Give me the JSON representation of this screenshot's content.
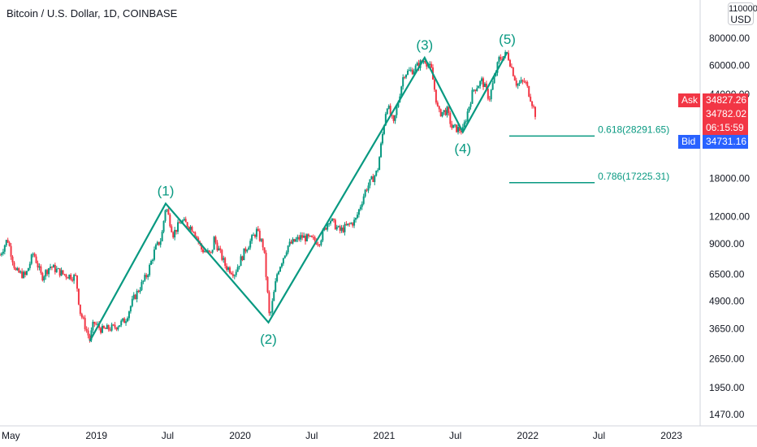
{
  "header": {
    "title": "Bitcoin / U.S. Dollar, 1D, COINBASE"
  },
  "currency_button": {
    "top": "110000.00",
    "label": "USD"
  },
  "price_badges": {
    "ask_label": "Ask",
    "ask_price": "34827.26",
    "last_price": "34782.02",
    "countdown": "06:15:59",
    "bid_label": "Bid",
    "bid_price": "34731.16"
  },
  "colors": {
    "up": "#089981",
    "down": "#f23645",
    "wave_line": "#089981",
    "ask_badge": "#f23645",
    "bid_badge": "#2962ff"
  },
  "chart_data": {
    "type": "candlestick",
    "title": "Bitcoin / U.S. Dollar, 1D, COINBASE",
    "y_scale": "log",
    "ylim": [
      1300,
      120000
    ],
    "xlim": [
      "2018-05-01",
      "2023-03-15"
    ],
    "y_ticks": [
      {
        "value": 80000,
        "label": "80000.00"
      },
      {
        "value": 60000,
        "label": "60000.00"
      },
      {
        "value": 44000,
        "label": "44000.00"
      },
      {
        "value": 18000,
        "label": "18000.00"
      },
      {
        "value": 12000,
        "label": "12000.00"
      },
      {
        "value": 9000,
        "label": "9000.00"
      },
      {
        "value": 6500,
        "label": "6500.00"
      },
      {
        "value": 4900,
        "label": "4900.00"
      },
      {
        "value": 3650,
        "label": "3650.00"
      },
      {
        "value": 2650,
        "label": "2650.00"
      },
      {
        "value": 1950,
        "label": "1950.00"
      },
      {
        "value": 1470,
        "label": "1470.00"
      }
    ],
    "x_ticks": [
      {
        "date": "2018-05-01",
        "label": "May"
      },
      {
        "date": "2019-01-01",
        "label": "2019"
      },
      {
        "date": "2019-07-01",
        "label": "Jul"
      },
      {
        "date": "2020-01-01",
        "label": "2020"
      },
      {
        "date": "2020-07-01",
        "label": "Jul"
      },
      {
        "date": "2021-01-01",
        "label": "2021"
      },
      {
        "date": "2021-07-01",
        "label": "Jul"
      },
      {
        "date": "2022-01-01",
        "label": "2022"
      },
      {
        "date": "2022-07-01",
        "label": "Jul"
      },
      {
        "date": "2023-01-01",
        "label": "2023"
      }
    ],
    "price_path": [
      [
        "2018-05-01",
        8000
      ],
      [
        "2018-05-20",
        9500
      ],
      [
        "2018-06-10",
        6700
      ],
      [
        "2018-07-05",
        6400
      ],
      [
        "2018-07-25",
        8200
      ],
      [
        "2018-08-15",
        6300
      ],
      [
        "2018-09-05",
        7100
      ],
      [
        "2018-10-10",
        6500
      ],
      [
        "2018-11-10",
        6300
      ],
      [
        "2018-11-20",
        4400
      ],
      [
        "2018-11-30",
        3900
      ],
      [
        "2018-12-15",
        3250
      ],
      [
        "2018-12-25",
        3900
      ],
      [
        "2019-01-15",
        3600
      ],
      [
        "2019-02-15",
        3700
      ],
      [
        "2019-03-15",
        4000
      ],
      [
        "2019-04-05",
        5000
      ],
      [
        "2019-05-10",
        6500
      ],
      [
        "2019-05-30",
        8500
      ],
      [
        "2019-06-15",
        9500
      ],
      [
        "2019-06-26",
        13500
      ],
      [
        "2019-07-15",
        10000
      ],
      [
        "2019-08-05",
        11500
      ],
      [
        "2019-09-05",
        10500
      ],
      [
        "2019-09-25",
        8500
      ],
      [
        "2019-10-20",
        8000
      ],
      [
        "2019-10-27",
        9500
      ],
      [
        "2019-11-25",
        7100
      ],
      [
        "2019-12-18",
        6600
      ],
      [
        "2020-01-15",
        8500
      ],
      [
        "2020-02-12",
        10300
      ],
      [
        "2020-03-01",
        8700
      ],
      [
        "2020-03-12",
        5000
      ],
      [
        "2020-03-16",
        4000
      ],
      [
        "2020-04-05",
        6700
      ],
      [
        "2020-05-01",
        8800
      ],
      [
        "2020-06-05",
        9700
      ],
      [
        "2020-07-20",
        9200
      ],
      [
        "2020-08-15",
        11800
      ],
      [
        "2020-09-10",
        10300
      ],
      [
        "2020-10-20",
        11500
      ],
      [
        "2020-11-15",
        16000
      ],
      [
        "2020-12-15",
        19500
      ],
      [
        "2021-01-08",
        40000
      ],
      [
        "2021-01-25",
        32000
      ],
      [
        "2021-02-20",
        55000
      ],
      [
        "2021-03-15",
        57000
      ],
      [
        "2021-04-14",
        64000
      ],
      [
        "2021-05-01",
        57000
      ],
      [
        "2021-05-19",
        36000
      ],
      [
        "2021-06-10",
        37000
      ],
      [
        "2021-06-22",
        31000
      ],
      [
        "2021-07-20",
        30000
      ],
      [
        "2021-08-15",
        46000
      ],
      [
        "2021-09-07",
        51000
      ],
      [
        "2021-09-25",
        42000
      ],
      [
        "2021-10-20",
        64000
      ],
      [
        "2021-11-10",
        68000
      ],
      [
        "2021-12-04",
        49000
      ],
      [
        "2021-12-25",
        50500
      ],
      [
        "2022-01-10",
        41500
      ],
      [
        "2022-01-22",
        34782
      ]
    ],
    "waves": [
      {
        "label": "(1)",
        "date": "2019-06-26",
        "price": 13800,
        "position": "above"
      },
      {
        "label": "(2)",
        "date": "2020-03-13",
        "price": 3900,
        "position": "below"
      },
      {
        "label": "(3)",
        "date": "2021-04-14",
        "price": 65000,
        "position": "above"
      },
      {
        "label": "(4)",
        "date": "2021-07-20",
        "price": 29500,
        "position": "below"
      },
      {
        "label": "(5)",
        "date": "2021-11-10",
        "price": 69000,
        "position": "above"
      }
    ],
    "wave_path": [
      [
        "2018-12-15",
        3200
      ],
      [
        "2019-06-26",
        13800
      ],
      [
        "2020-03-13",
        3900
      ],
      [
        "2021-04-14",
        65000
      ],
      [
        "2021-07-20",
        29500
      ],
      [
        "2021-11-10",
        69000
      ]
    ],
    "fib_levels": [
      {
        "ratio": "0.618",
        "price": 28291.65,
        "label": "0.618(28291.65)",
        "start": "2021-11-15",
        "end": "2022-06-20"
      },
      {
        "ratio": "0.786",
        "price": 17225.31,
        "label": "0.786(17225.31)",
        "start": "2021-11-15",
        "end": "2022-06-20"
      }
    ]
  }
}
